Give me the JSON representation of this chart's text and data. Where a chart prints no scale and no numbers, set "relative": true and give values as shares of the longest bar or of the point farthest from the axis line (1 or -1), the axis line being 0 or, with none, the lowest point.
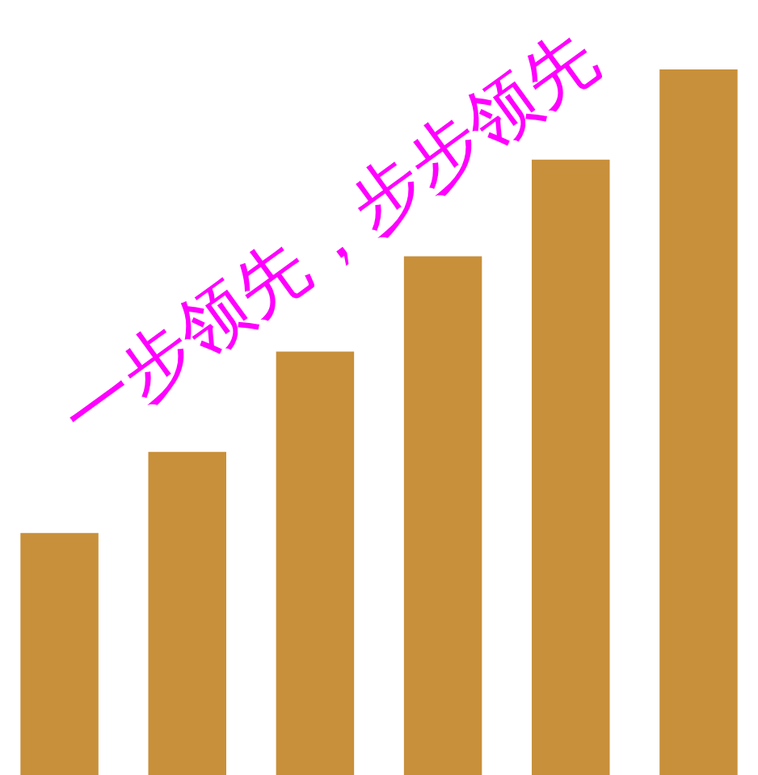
{
  "chart_data": {
    "type": "bar",
    "relative": true,
    "title": "一步领先，步步领先",
    "categories": [
      null,
      null,
      null,
      null,
      null,
      null
    ],
    "series": [
      {
        "color": "#c8903a",
        "values": [
          0.343,
          0.458,
          0.6,
          0.735,
          0.872,
          1
        ]
      }
    ],
    "grid": false
  }
}
